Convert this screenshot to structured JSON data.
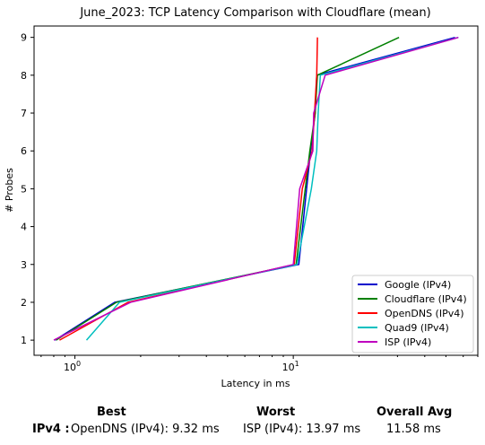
{
  "chart_data": {
    "type": "line",
    "title": "June_2023: TCP Latency Comparison with Cloudflare (mean)",
    "xlabel": "Latency in ms",
    "ylabel": "# Probes",
    "xscale": "log",
    "xlim": [
      0.65,
      70
    ],
    "ylim": [
      0.6,
      9.3
    ],
    "x_ticks": [
      1,
      10
    ],
    "x_tick_labels": [
      "10^0",
      "10^1"
    ],
    "y_ticks": [
      1,
      2,
      3,
      4,
      5,
      6,
      7,
      8,
      9
    ],
    "y_tick_labels": [
      "1",
      "2",
      "3",
      "4",
      "5",
      "6",
      "7",
      "8",
      "9"
    ],
    "grid": false,
    "legend_position": "lower-right",
    "series": [
      {
        "name": "Google (IPv4)",
        "color": "#0000cc",
        "points": [
          [
            0.81,
            1
          ],
          [
            1.52,
            2
          ],
          [
            10.6,
            3
          ],
          [
            12.0,
            6
          ],
          [
            12.6,
            7
          ],
          [
            12.8,
            8
          ],
          [
            55,
            9
          ]
        ]
      },
      {
        "name": "Cloudflare (IPv4)",
        "color": "#008000",
        "points": [
          [
            0.82,
            1
          ],
          [
            1.55,
            2
          ],
          [
            10.3,
            3
          ],
          [
            11.9,
            6
          ],
          [
            12.6,
            7
          ],
          [
            12.9,
            8
          ],
          [
            30.5,
            9
          ]
        ]
      },
      {
        "name": "OpenDNS (IPv4)",
        "color": "#ff0000",
        "points": [
          [
            0.85,
            1
          ],
          [
            1.75,
            2
          ],
          [
            10.1,
            3
          ],
          [
            11.0,
            5
          ],
          [
            12.2,
            6
          ],
          [
            12.5,
            7
          ],
          [
            12.8,
            8
          ],
          [
            12.9,
            9
          ]
        ]
      },
      {
        "name": "Quad9 (IPv4)",
        "color": "#00bfbf",
        "points": [
          [
            1.13,
            1
          ],
          [
            1.6,
            2
          ],
          [
            10.4,
            3
          ],
          [
            12.1,
            5
          ],
          [
            12.8,
            6
          ],
          [
            13.0,
            7
          ],
          [
            13.3,
            8
          ],
          [
            57,
            9
          ]
        ]
      },
      {
        "name": "ISP (IPv4)",
        "color": "#bf00bf",
        "points": [
          [
            0.8,
            1
          ],
          [
            1.8,
            2
          ],
          [
            10.0,
            3
          ],
          [
            10.7,
            5
          ],
          [
            12.3,
            6
          ],
          [
            12.4,
            7
          ],
          [
            14.0,
            8
          ],
          [
            57,
            9
          ]
        ]
      }
    ]
  },
  "stats": {
    "best_label": "Best",
    "worst_label": "Worst",
    "avg_label": "Overall Avg",
    "row_label": "IPv4 :",
    "best_value": "OpenDNS (IPv4): 9.32 ms",
    "worst_value": "ISP (IPv4): 13.97 ms",
    "avg_value": "11.58 ms"
  }
}
